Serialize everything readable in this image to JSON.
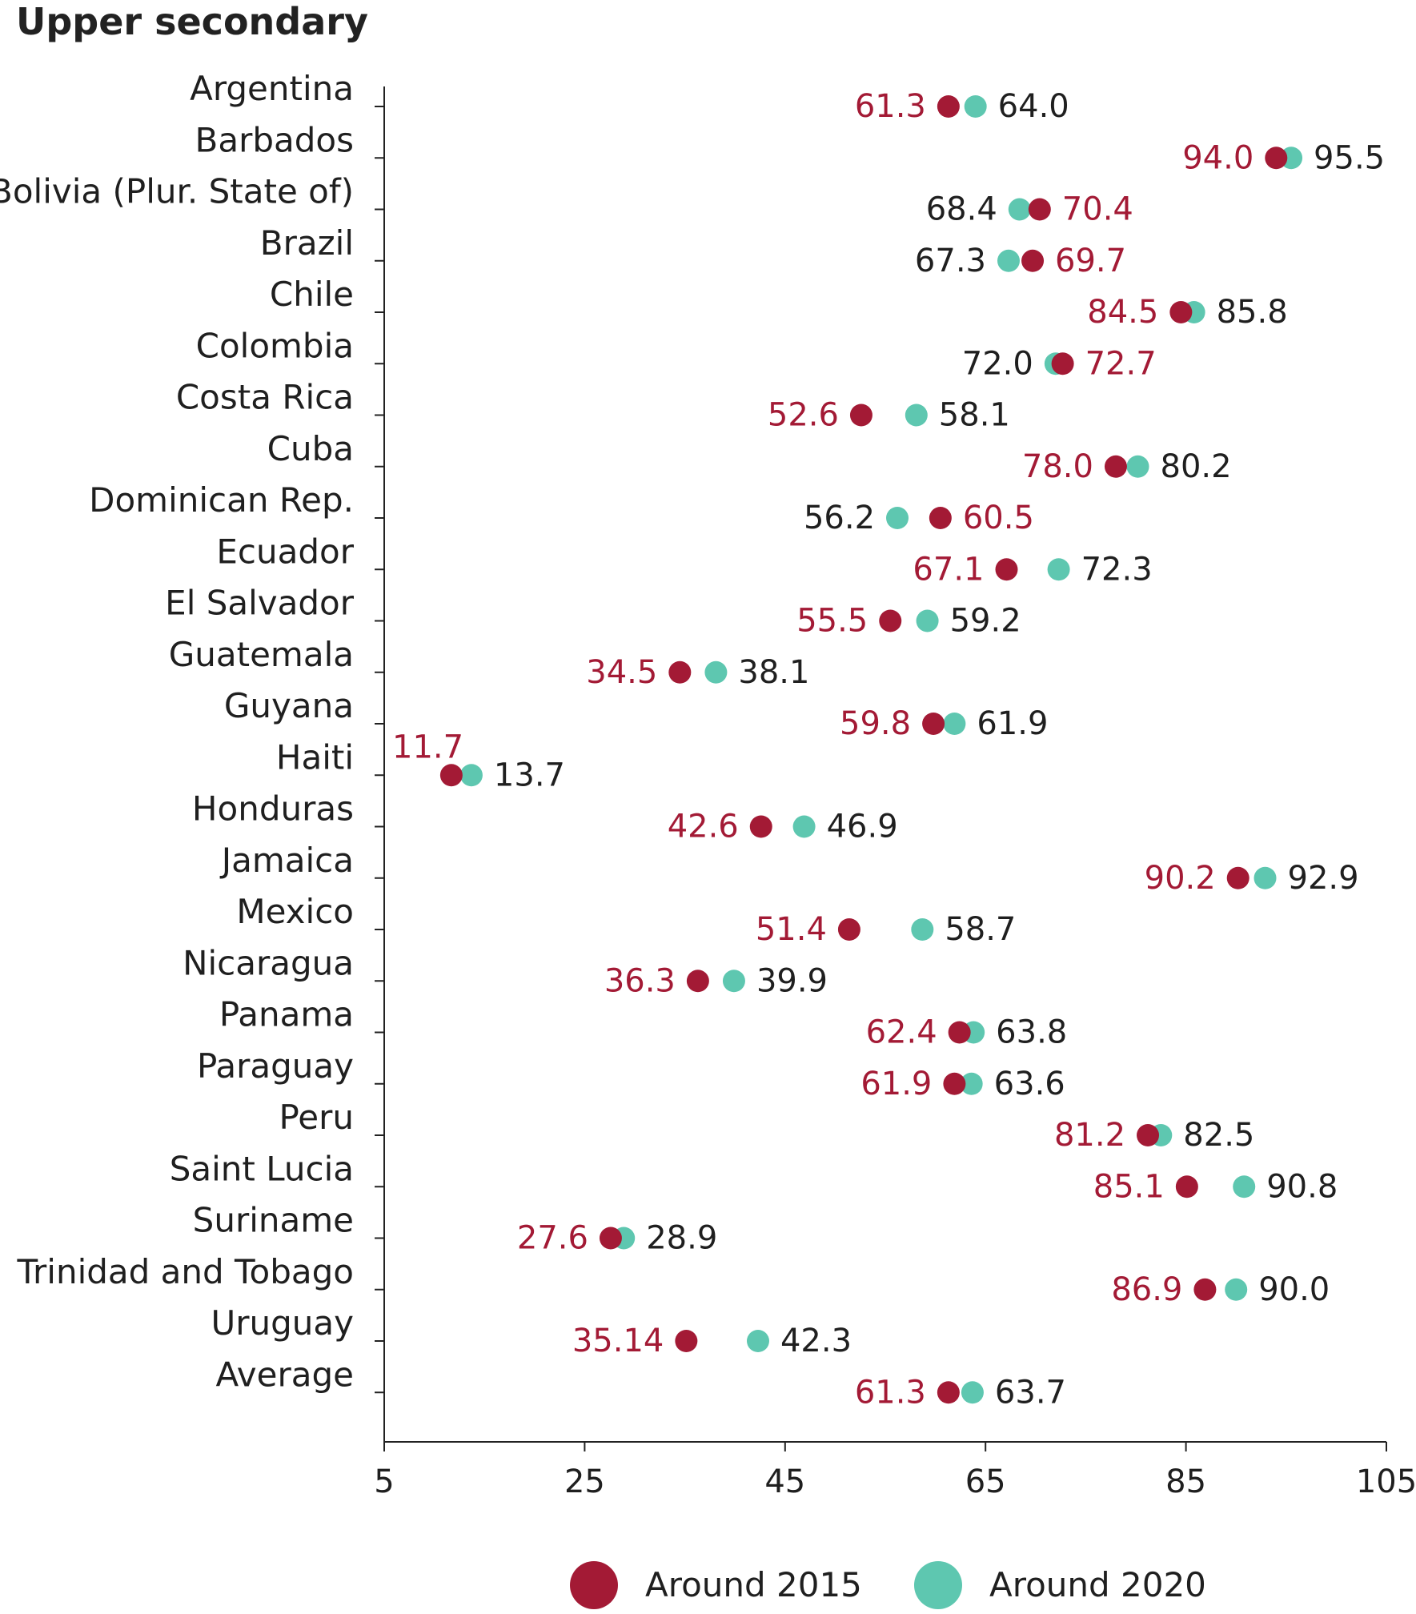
{
  "chart_data": {
    "type": "scatter",
    "title": "Upper secondary",
    "xlabel": "",
    "ylabel": "",
    "xlim": [
      5,
      105
    ],
    "xticks": [
      "5",
      "25",
      "45",
      "65",
      "85",
      "105"
    ],
    "grid": false,
    "legend_position": "bottom",
    "categories": [
      "Argentina",
      "Barbados",
      "Bolivia (Plur. State of)",
      "Brazil",
      "Chile",
      "Colombia",
      "Costa Rica",
      "Cuba",
      "Dominican Rep.",
      "Ecuador",
      "El Salvador",
      "Guatemala",
      "Guyana",
      "Haiti",
      "Honduras",
      "Jamaica",
      "Mexico",
      "Nicaragua",
      "Panama",
      "Paraguay",
      "Peru",
      "Saint Lucia",
      "Suriname",
      "Trinidad and Tobago",
      "Uruguay",
      "Average"
    ],
    "series": [
      {
        "name": "Around 2015",
        "color": "#a31a35",
        "values": [
          61.3,
          94.0,
          70.4,
          69.7,
          84.5,
          72.7,
          52.6,
          78.0,
          60.5,
          67.1,
          55.5,
          34.5,
          59.8,
          11.7,
          42.6,
          90.2,
          51.4,
          36.3,
          62.4,
          61.9,
          81.2,
          85.1,
          27.6,
          86.9,
          35.14,
          61.3
        ],
        "labels": [
          "61.3",
          "94.0",
          "70.4",
          "69.7",
          "84.5",
          "72.7",
          "52.6",
          "78.0",
          "60.5",
          "67.1",
          "55.5",
          "34.5",
          "59.8",
          "11.7",
          "42.6",
          "90.2",
          "51.4",
          "36.3",
          "62.4",
          "61.9",
          "81.2",
          "85.1",
          "27.6",
          "86.9",
          "35.14",
          "61.3"
        ]
      },
      {
        "name": "Around 2020",
        "color": "#5ec7b0",
        "values": [
          64.0,
          95.5,
          68.4,
          67.3,
          85.8,
          72.0,
          58.1,
          80.2,
          56.2,
          72.3,
          59.2,
          38.1,
          61.9,
          13.7,
          46.9,
          92.9,
          58.7,
          39.9,
          63.8,
          63.6,
          82.5,
          90.8,
          28.9,
          90.0,
          42.3,
          63.7
        ],
        "labels": [
          "64.0",
          "95.5",
          "68.4",
          "67.3",
          "85.8",
          "72.0",
          "58.1",
          "80.2",
          "56.2",
          "72.3",
          "59.2",
          "38.1",
          "61.9",
          "13.7",
          "46.9",
          "92.9",
          "58.7",
          "39.9",
          "63.8",
          "63.6",
          "82.5",
          "90.8",
          "28.9",
          "90.0",
          "42.3",
          "63.7"
        ]
      }
    ]
  }
}
